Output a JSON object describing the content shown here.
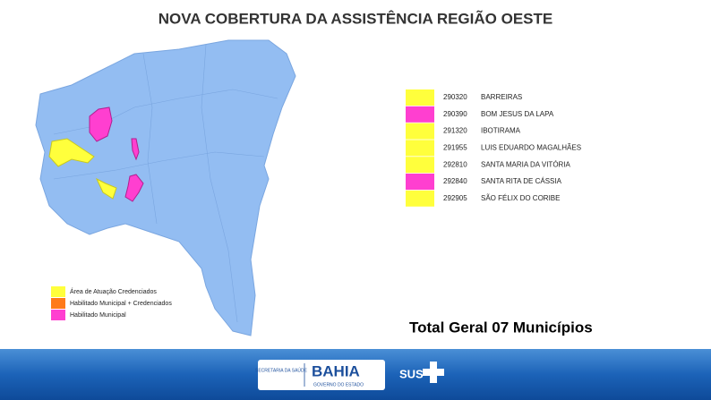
{
  "header": {
    "title": "NOVA COBERTURA DA ASSISTÊNCIA REGIÃO OESTE"
  },
  "table": {
    "rows": [
      {
        "code": "290320",
        "name": "BARREIRAS",
        "color": "#ffff3c"
      },
      {
        "code": "290390",
        "name": "BOM JESUS DA LAPA",
        "color": "#ff3fd0"
      },
      {
        "code": "291320",
        "name": "IBOTIRAMA",
        "color": "#ffff3c"
      },
      {
        "code": "291955",
        "name": "LUIS EDUARDO MAGALHÃES",
        "color": "#ffff3c"
      },
      {
        "code": "292810",
        "name": "SANTA MARIA DA VITÓRIA",
        "color": "#ffff3c"
      },
      {
        "code": "292840",
        "name": "SANTA RITA DE CÁSSIA",
        "color": "#ff3fd0"
      },
      {
        "code": "292905",
        "name": "SÃO FÉLIX DO CORIBE",
        "color": "#ffff3c"
      }
    ]
  },
  "legend": [
    {
      "label": "Área de Atuação Credenciados",
      "color": "#ffff3c"
    },
    {
      "label": "Habilitado Municipal + Credenciados",
      "color": "#ff7a1a"
    },
    {
      "label": "Habilitado Municipal",
      "color": "#ff3fd0"
    }
  ],
  "total": "Total Geral 07 Municípios",
  "footer": {
    "secretaria": "SECRETARIA DA SAÚDE",
    "bahia": "BAHIA",
    "governo": "GOVERNO DO ESTADO",
    "sus": "SUS"
  }
}
